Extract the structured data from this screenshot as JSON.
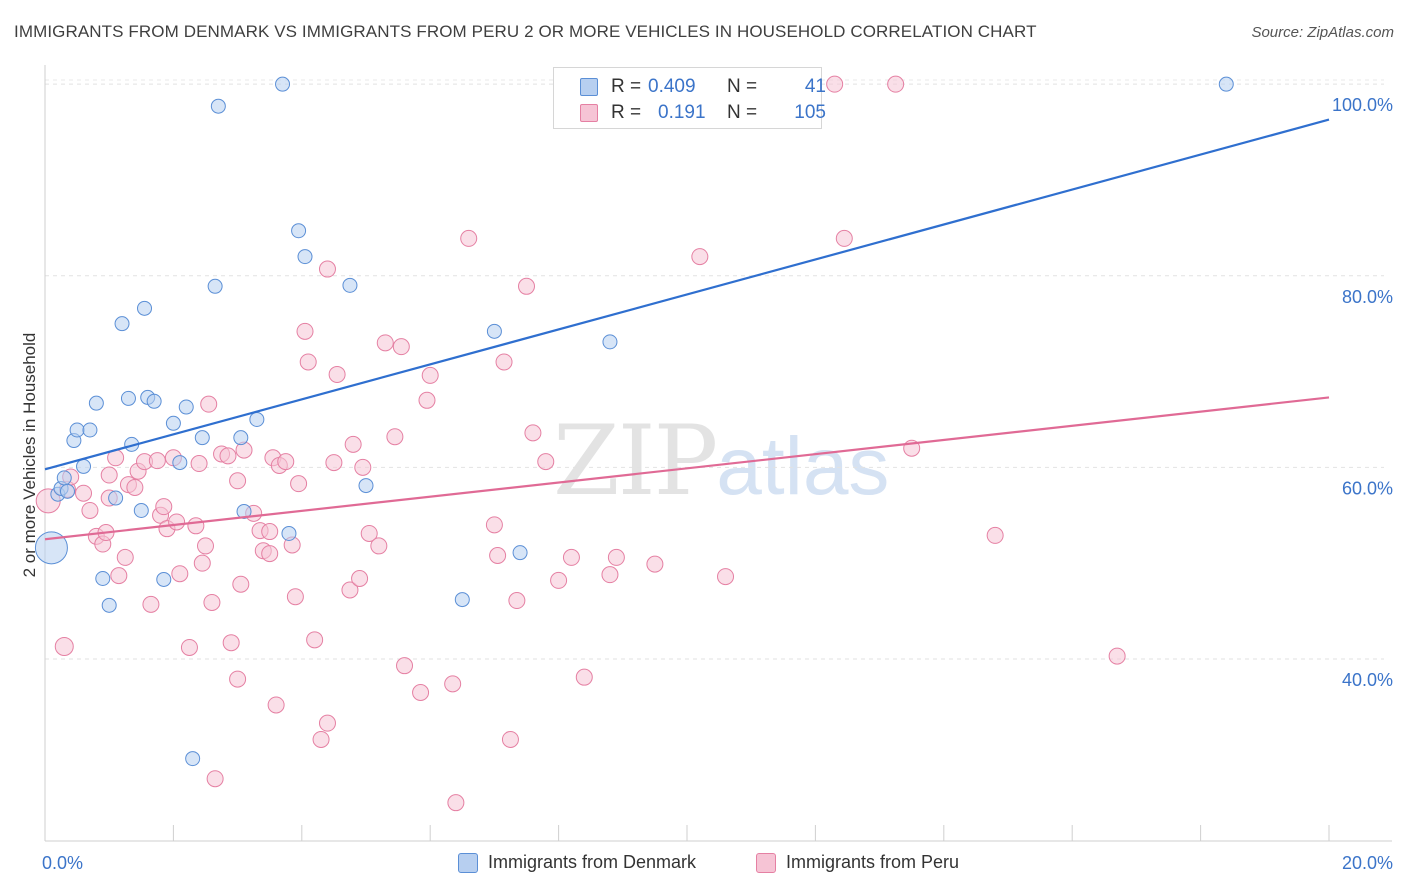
{
  "title": "IMMIGRANTS FROM DENMARK VS IMMIGRANTS FROM PERU 2 OR MORE VEHICLES IN HOUSEHOLD CORRELATION CHART",
  "source": "Source: ZipAtlas.com",
  "watermark": {
    "zip": "ZIP",
    "atlas": "atlas"
  },
  "colors": {
    "denmark": "#5b8fd6",
    "denmark_fill": "#b7cff0",
    "peru": "#e580a3",
    "peru_fill": "#f6c4d5",
    "denmark_line": "#2f6fcf",
    "peru_line": "#e06a95",
    "tick": "#3b74c9"
  },
  "legend": {
    "rows": [
      {
        "r_label": "R =",
        "r_value": "0.409",
        "n_label": "N =",
        "n_value": "41",
        "series": "denmark"
      },
      {
        "r_label": "R =",
        "r_value": "0.191",
        "n_label": "N =",
        "n_value": "105",
        "series": "peru"
      }
    ]
  },
  "chart_data": {
    "type": "scatter",
    "title": "IMMIGRANTS FROM DENMARK VS IMMIGRANTS FROM PERU 2 OR MORE VEHICLES IN HOUSEHOLD CORRELATION CHART",
    "xlabel": "",
    "ylabel": "2 or more Vehicles in Household",
    "xlim": [
      0,
      20
    ],
    "ylim": [
      21,
      102
    ],
    "x_ticks": [
      "0.0%",
      "20.0%"
    ],
    "y_ticks": [
      {
        "value": 100,
        "label": "100.0%"
      },
      {
        "value": 80,
        "label": "80.0%"
      },
      {
        "value": 60,
        "label": "60.0%"
      },
      {
        "value": 40,
        "label": "40.0%"
      }
    ],
    "grid": true,
    "legend_position": "top-center",
    "series": [
      {
        "name": "Immigrants from Denmark",
        "key": "denmark",
        "trend": {
          "x": [
            0,
            20
          ],
          "y": [
            59.8,
            96.3
          ]
        },
        "points": [
          [
            0.1,
            51.6,
            32
          ],
          [
            0.2,
            57.2,
            14
          ],
          [
            0.25,
            57.8,
            14
          ],
          [
            0.3,
            58.9,
            14
          ],
          [
            0.35,
            57.5,
            14
          ],
          [
            0.45,
            62.8,
            14
          ],
          [
            0.5,
            63.9,
            14
          ],
          [
            0.6,
            60.1,
            14
          ],
          [
            0.7,
            63.9,
            14
          ],
          [
            0.8,
            66.7,
            14
          ],
          [
            0.9,
            48.4,
            14
          ],
          [
            1.0,
            45.6,
            14
          ],
          [
            1.1,
            56.8,
            14
          ],
          [
            1.2,
            75.0,
            14
          ],
          [
            1.3,
            67.2,
            14
          ],
          [
            1.35,
            62.4,
            14
          ],
          [
            1.5,
            55.5,
            14
          ],
          [
            1.55,
            76.6,
            14
          ],
          [
            1.6,
            67.3,
            14
          ],
          [
            1.7,
            66.9,
            14
          ],
          [
            1.85,
            48.3,
            14
          ],
          [
            2.0,
            64.6,
            14
          ],
          [
            2.1,
            60.5,
            14
          ],
          [
            2.2,
            66.3,
            14
          ],
          [
            2.3,
            29.6,
            14
          ],
          [
            2.45,
            63.1,
            14
          ],
          [
            2.65,
            78.9,
            14
          ],
          [
            2.7,
            97.7,
            14
          ],
          [
            3.05,
            63.1,
            14
          ],
          [
            3.1,
            55.4,
            14
          ],
          [
            3.3,
            65.0,
            14
          ],
          [
            3.7,
            100.0,
            14
          ],
          [
            3.8,
            53.1,
            14
          ],
          [
            3.95,
            84.7,
            14
          ],
          [
            4.05,
            82.0,
            14
          ],
          [
            4.75,
            79.0,
            14
          ],
          [
            5.0,
            58.1,
            14
          ],
          [
            6.5,
            46.2,
            14
          ],
          [
            7.0,
            74.2,
            14
          ],
          [
            7.4,
            51.1,
            14
          ],
          [
            8.8,
            73.1,
            14
          ],
          [
            18.4,
            100.0,
            14
          ]
        ]
      },
      {
        "name": "Immigrants from Peru",
        "key": "peru",
        "trend": {
          "x": [
            0,
            20
          ],
          "y": [
            52.5,
            67.3
          ]
        },
        "points": [
          [
            0.05,
            56.5,
            24
          ],
          [
            0.3,
            41.3,
            18
          ],
          [
            0.35,
            57.7,
            16
          ],
          [
            0.4,
            59.0,
            16
          ],
          [
            0.6,
            57.3,
            16
          ],
          [
            0.7,
            55.5,
            16
          ],
          [
            0.8,
            52.8,
            16
          ],
          [
            0.9,
            52.0,
            16
          ],
          [
            0.95,
            53.2,
            16
          ],
          [
            1.0,
            56.8,
            16
          ],
          [
            1.0,
            59.2,
            16
          ],
          [
            1.1,
            61.0,
            16
          ],
          [
            1.15,
            48.7,
            16
          ],
          [
            1.25,
            50.6,
            16
          ],
          [
            1.3,
            58.2,
            16
          ],
          [
            1.4,
            57.9,
            16
          ],
          [
            1.45,
            59.6,
            16
          ],
          [
            1.55,
            60.6,
            16
          ],
          [
            1.65,
            45.7,
            16
          ],
          [
            1.75,
            60.7,
            16
          ],
          [
            1.8,
            55.0,
            16
          ],
          [
            1.85,
            55.9,
            16
          ],
          [
            1.9,
            53.6,
            16
          ],
          [
            2.0,
            61.0,
            16
          ],
          [
            2.05,
            54.3,
            16
          ],
          [
            2.1,
            48.9,
            16
          ],
          [
            2.25,
            41.2,
            16
          ],
          [
            2.35,
            53.9,
            16
          ],
          [
            2.4,
            60.4,
            16
          ],
          [
            2.45,
            50.0,
            16
          ],
          [
            2.5,
            51.8,
            16
          ],
          [
            2.55,
            66.6,
            16
          ],
          [
            2.6,
            45.9,
            16
          ],
          [
            2.65,
            27.5,
            16
          ],
          [
            2.75,
            61.4,
            16
          ],
          [
            2.85,
            61.2,
            16
          ],
          [
            2.9,
            41.7,
            16
          ],
          [
            3.0,
            58.6,
            16
          ],
          [
            3.0,
            37.9,
            16
          ],
          [
            3.05,
            47.8,
            16
          ],
          [
            3.1,
            61.8,
            16
          ],
          [
            3.25,
            55.2,
            16
          ],
          [
            3.35,
            53.4,
            16
          ],
          [
            3.4,
            51.3,
            16
          ],
          [
            3.5,
            51.0,
            16
          ],
          [
            3.5,
            53.3,
            16
          ],
          [
            3.55,
            61.0,
            16
          ],
          [
            3.6,
            35.2,
            16
          ],
          [
            3.65,
            60.2,
            16
          ],
          [
            3.75,
            60.6,
            16
          ],
          [
            3.85,
            51.9,
            16
          ],
          [
            3.9,
            46.5,
            16
          ],
          [
            3.95,
            58.3,
            16
          ],
          [
            4.05,
            74.2,
            16
          ],
          [
            4.1,
            71.0,
            16
          ],
          [
            4.2,
            42.0,
            16
          ],
          [
            4.3,
            31.6,
            16
          ],
          [
            4.4,
            80.7,
            16
          ],
          [
            4.4,
            33.3,
            16
          ],
          [
            4.5,
            60.5,
            16
          ],
          [
            4.55,
            69.7,
            16
          ],
          [
            4.75,
            47.2,
            16
          ],
          [
            4.8,
            62.4,
            16
          ],
          [
            4.9,
            48.4,
            16
          ],
          [
            4.95,
            60.0,
            16
          ],
          [
            5.05,
            53.1,
            16
          ],
          [
            5.2,
            51.8,
            16
          ],
          [
            5.3,
            73.0,
            16
          ],
          [
            5.45,
            63.2,
            16
          ],
          [
            5.55,
            72.6,
            16
          ],
          [
            5.6,
            39.3,
            16
          ],
          [
            5.85,
            36.5,
            16
          ],
          [
            5.95,
            67.0,
            16
          ],
          [
            6.0,
            69.6,
            16
          ],
          [
            6.35,
            37.4,
            16
          ],
          [
            6.4,
            25.0,
            16
          ],
          [
            6.6,
            83.9,
            16
          ],
          [
            7.0,
            54.0,
            16
          ],
          [
            7.05,
            50.8,
            16
          ],
          [
            7.15,
            71.0,
            16
          ],
          [
            7.25,
            31.6,
            16
          ],
          [
            7.35,
            46.1,
            16
          ],
          [
            7.5,
            78.9,
            16
          ],
          [
            7.6,
            63.6,
            16
          ],
          [
            7.8,
            60.6,
            16
          ],
          [
            8.0,
            48.2,
            16
          ],
          [
            8.2,
            50.6,
            16
          ],
          [
            8.4,
            38.1,
            16
          ],
          [
            8.8,
            48.8,
            16
          ],
          [
            8.9,
            50.6,
            16
          ],
          [
            9.5,
            49.9,
            16
          ],
          [
            10.2,
            82.0,
            16
          ],
          [
            10.6,
            48.6,
            16
          ],
          [
            12.3,
            100.0,
            16
          ],
          [
            12.45,
            83.9,
            16
          ],
          [
            13.25,
            100.0,
            16
          ],
          [
            13.5,
            62.0,
            16
          ],
          [
            14.8,
            52.9,
            16
          ],
          [
            16.7,
            40.3,
            16
          ]
        ]
      }
    ]
  },
  "bottom_legend": [
    {
      "label": "Immigrants from Denmark",
      "series": "denmark"
    },
    {
      "label": "Immigrants from Peru",
      "series": "peru"
    }
  ]
}
